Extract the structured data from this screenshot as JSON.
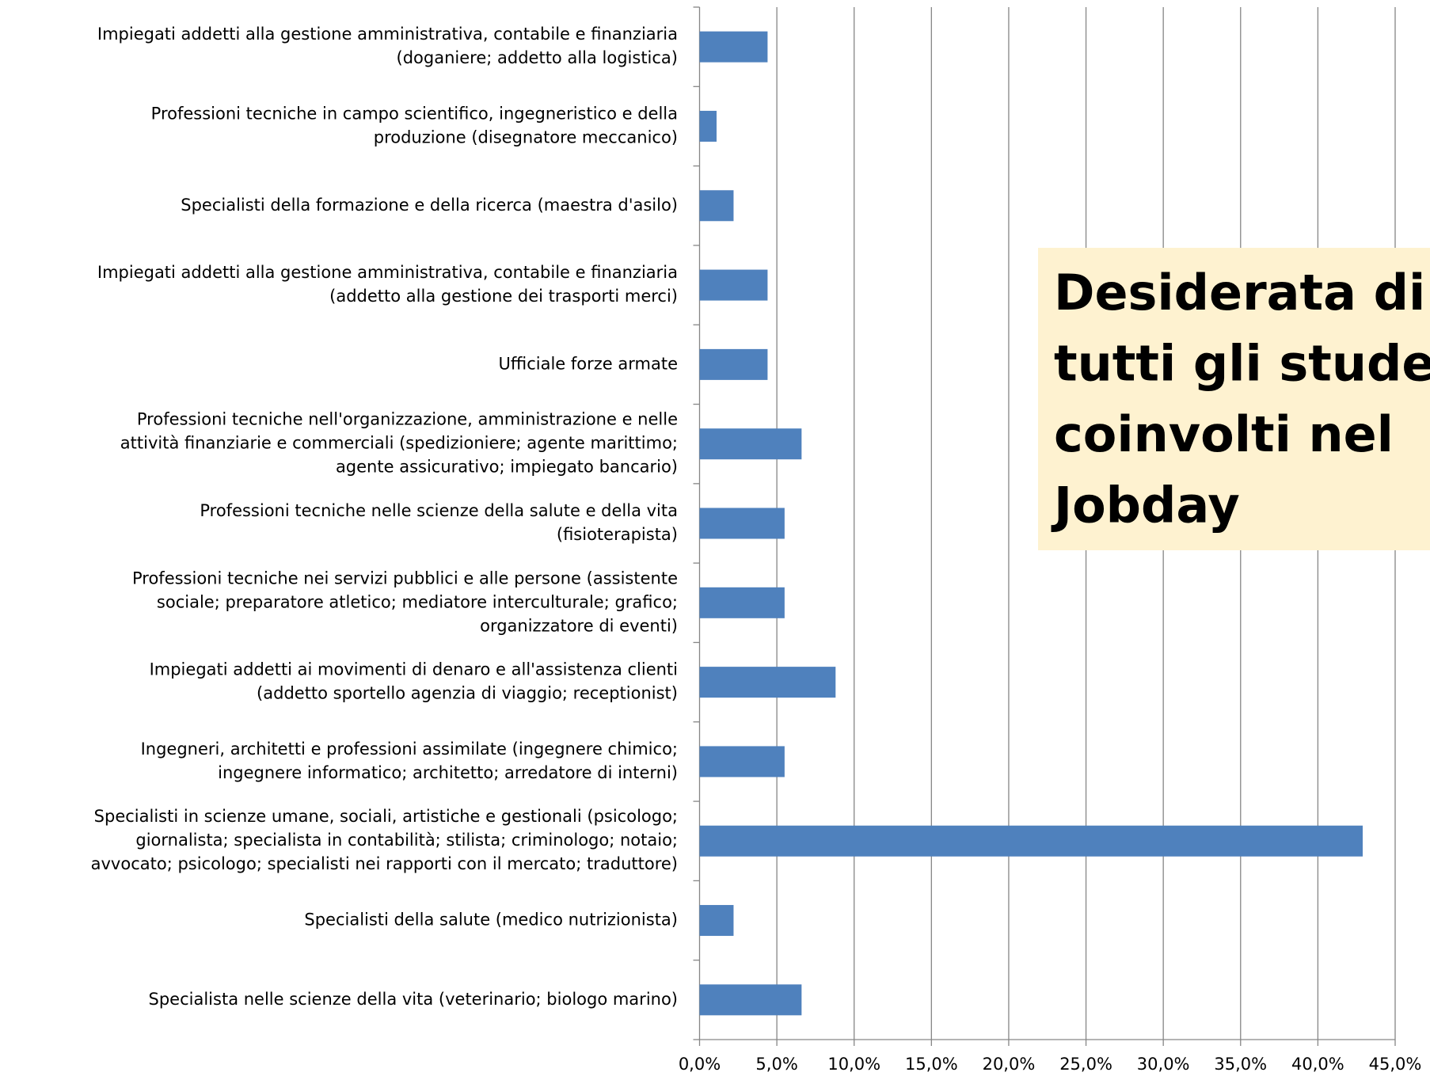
{
  "chart_data": {
    "type": "barh",
    "title": [
      "Desiderata di",
      "tutti gli studenti",
      "coinvolti nel",
      "Jobday"
    ],
    "categories": [
      [
        "Impiegati addetti alla gestione amministrativa, contabile e finanziaria",
        "(doganiere; addetto alla logistica)"
      ],
      [
        "Professioni tecniche in campo scientifico, ingegneristico e della",
        "produzione (disegnatore meccanico)"
      ],
      [
        "Specialisti della formazione e della ricerca (maestra d'asilo)"
      ],
      [
        "Impiegati addetti alla gestione amministrativa, contabile e finanziaria",
        "(addetto alla gestione dei trasporti merci)"
      ],
      [
        "Ufficiale forze armate"
      ],
      [
        "Professioni tecniche nell'organizzazione, amministrazione e nelle",
        "attività finanziarie e commerciali (spedizioniere; agente marittimo;",
        "agente assicurativo; impiegato bancario)"
      ],
      [
        "Professioni tecniche nelle scienze della salute e della vita",
        "(fisioterapista)"
      ],
      [
        "Professioni tecniche nei servizi pubblici e alle persone (assistente",
        "sociale; preparatore atletico; mediatore interculturale; grafico;",
        "organizzatore di eventi)"
      ],
      [
        "Impiegati addetti ai movimenti di denaro e all'assistenza clienti",
        "(addetto sportello agenzia di viaggio; receptionist)"
      ],
      [
        "Ingegneri, architetti e professioni assimilate (ingegnere chimico;",
        "ingegnere informatico; architetto; arredatore di interni)"
      ],
      [
        "Specialisti in scienze umane, sociali, artistiche e gestionali (psicologo;",
        "giornalista; specialista in contabilità; stilista; criminologo; notaio;",
        "avvocato; psicologo; specialisti nei rapporti con il mercato; traduttore)"
      ],
      [
        "Specialisti della salute (medico nutrizionista)"
      ],
      [
        "Specialista nelle scienze della vita (veterinario; biologo marino)"
      ]
    ],
    "values": [
      4.4,
      1.1,
      2.2,
      4.4,
      4.4,
      6.6,
      5.5,
      5.5,
      8.8,
      5.5,
      42.9,
      2.2,
      6.6
    ],
    "color": "#4f81bd",
    "xlim": [
      0,
      45
    ],
    "xticks": [
      {
        "value": 0,
        "label": "0,0%"
      },
      {
        "value": 5,
        "label": "5,0%"
      },
      {
        "value": 10,
        "label": "10,0%"
      },
      {
        "value": 15,
        "label": "15,0%"
      },
      {
        "value": 20,
        "label": "20,0%"
      },
      {
        "value": 25,
        "label": "25,0%"
      },
      {
        "value": 30,
        "label": "30,0%"
      },
      {
        "value": 35,
        "label": "35,0%"
      },
      {
        "value": 40,
        "label": "40,0%"
      },
      {
        "value": 45,
        "label": "45,0%"
      }
    ],
    "grid": true
  }
}
